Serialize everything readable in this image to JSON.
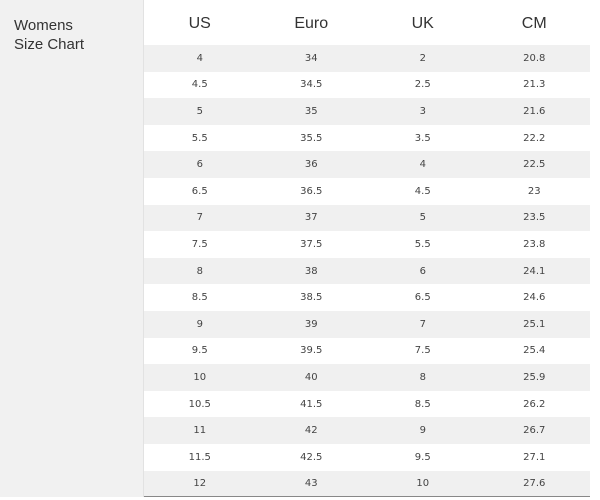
{
  "title_line1": "Womens",
  "title_line2": "Size Chart",
  "headers": [
    "US",
    "Euro",
    "UK",
    "CM"
  ],
  "rows": [
    [
      "4",
      "34",
      "2",
      "20.8"
    ],
    [
      "4.5",
      "34.5",
      "2.5",
      "21.3"
    ],
    [
      "5",
      "35",
      "3",
      "21.6"
    ],
    [
      "5.5",
      "35.5",
      "3.5",
      "22.2"
    ],
    [
      "6",
      "36",
      "4",
      "22.5"
    ],
    [
      "6.5",
      "36.5",
      "4.5",
      "23"
    ],
    [
      "7",
      "37",
      "5",
      "23.5"
    ],
    [
      "7.5",
      "37.5",
      "5.5",
      "23.8"
    ],
    [
      "8",
      "38",
      "6",
      "24.1"
    ],
    [
      "8.5",
      "38.5",
      "6.5",
      "24.6"
    ],
    [
      "9",
      "39",
      "7",
      "25.1"
    ],
    [
      "9.5",
      "39.5",
      "7.5",
      "25.4"
    ],
    [
      "10",
      "40",
      "8",
      "25.9"
    ],
    [
      "10.5",
      "41.5",
      "8.5",
      "26.2"
    ],
    [
      "11",
      "42",
      "9",
      "26.7"
    ],
    [
      "11.5",
      "42.5",
      "9.5",
      "27.1"
    ],
    [
      "12",
      "43",
      "10",
      "27.6"
    ]
  ]
}
